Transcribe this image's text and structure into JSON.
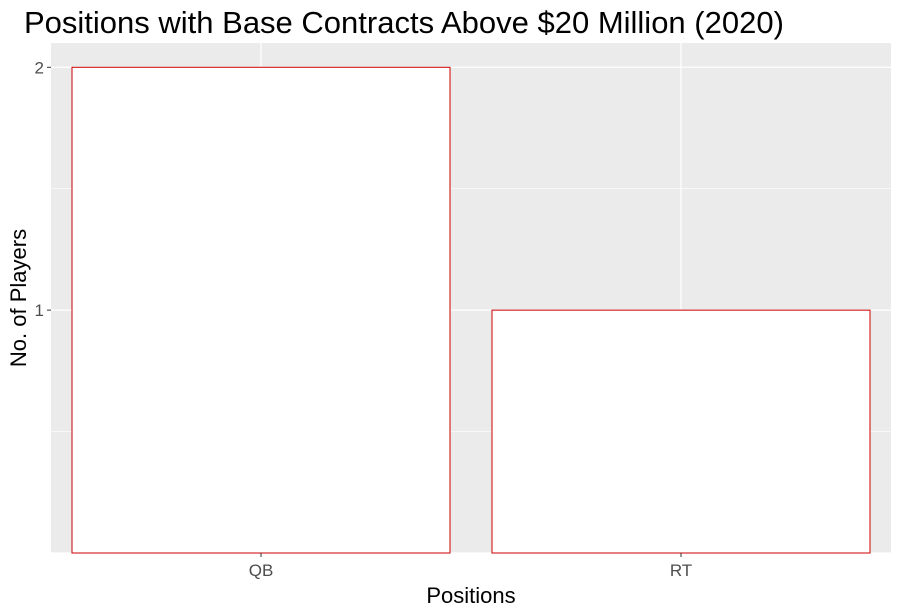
{
  "chart_data": {
    "type": "bar",
    "title": "Positions with Base Contracts Above $20 Million (2020)",
    "xlabel": "Positions",
    "ylabel": "No. of Players",
    "categories": [
      "QB",
      "RT"
    ],
    "values": [
      2,
      1
    ],
    "ylim": [
      0,
      2.1
    ],
    "yticks": [
      1,
      2
    ],
    "ytick_labels": [
      "1",
      "2"
    ],
    "grid": true,
    "legend": "none",
    "colors": {
      "panel_background": "#ebebeb",
      "gridline": "#ffffff",
      "bar_fill": "#ffffff",
      "bar_outline": "#cc0000",
      "tick_text": "#4d4d4d",
      "tick_mark": "#333333"
    }
  }
}
